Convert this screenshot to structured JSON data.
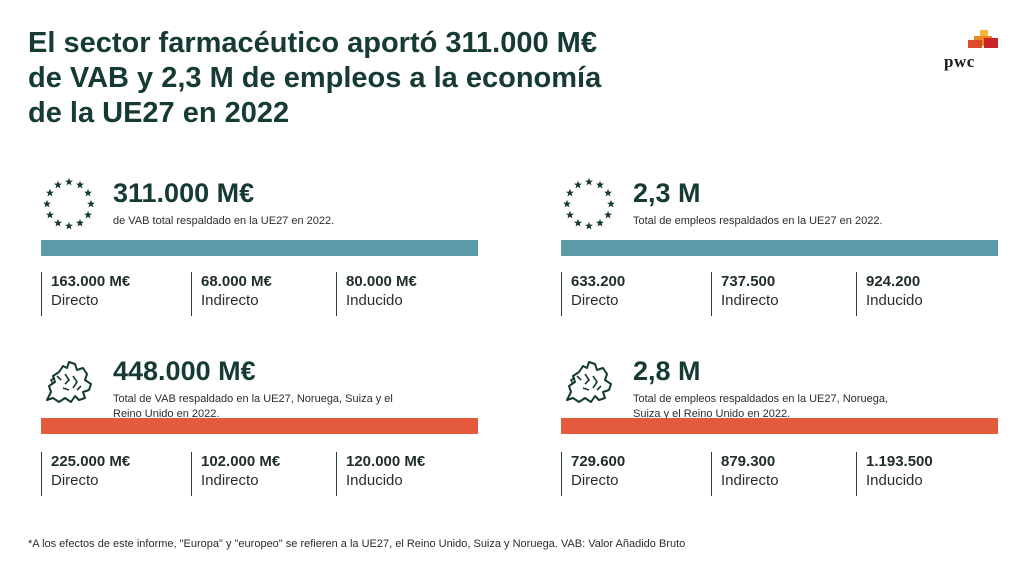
{
  "title": {
    "line1": "El sector farmacéutico aportó 311.000 M€",
    "line2": "de VAB y 2,3 M de empleos a la economía",
    "line3": "de la UE27 en 2022"
  },
  "logo": {
    "text": "pwc",
    "colors": [
      "#e8891f",
      "#dc4c2a",
      "#c9242a",
      "#f0b43c"
    ]
  },
  "blocks": {
    "vab_eu": {
      "icon": "eu-stars-icon",
      "value": "311.000 M€",
      "description": "de VAB total respaldado en la UE27 en 2022.",
      "bar_color": "#5b9aa7",
      "stats": [
        {
          "value": "163.000 M€",
          "label": "Directo"
        },
        {
          "value": "68.000 M€",
          "label": "Indirecto"
        },
        {
          "value": "80.000 M€",
          "label": "Inducido"
        }
      ]
    },
    "jobs_eu": {
      "icon": "eu-stars-icon",
      "value": "2,3 M",
      "description": "Total de empleos respaldados en la UE27 en 2022.",
      "bar_color": "#5b9aa7",
      "stats": [
        {
          "value": "633.200",
          "label": "Directo"
        },
        {
          "value": "737.500",
          "label": "Indirecto"
        },
        {
          "value": "924.200",
          "label": "Inducido"
        }
      ]
    },
    "vab_europe": {
      "icon": "europe-map-icon",
      "value": "448.000 M€",
      "description": "Total de VAB respaldado en la UE27, Noruega, Suiza y el Reino Unido en 2022.",
      "bar_color": "#e35a3c",
      "stats": [
        {
          "value": "225.000 M€",
          "label": "Directo"
        },
        {
          "value": "102.000 M€",
          "label": "Indirecto"
        },
        {
          "value": "120.000 M€",
          "label": "Inducido"
        }
      ]
    },
    "jobs_europe": {
      "icon": "europe-map-icon",
      "value": "2,8 M",
      "description": "Total de empleos respaldados en la UE27, Noruega, Suiza y el Reino Unido en 2022.",
      "bar_color": "#e35a3c",
      "stats": [
        {
          "value": "729.600",
          "label": "Directo"
        },
        {
          "value": "879.300",
          "label": "Indirecto"
        },
        {
          "value": "1.193.500",
          "label": "Inducido"
        }
      ]
    }
  },
  "footnote": "*A los efectos de este informe, \"Europa\" y \"europeo\" se refieren a la UE27, el Reino Unido, Suiza y Noruega. VAB: Valor Añadido Bruto"
}
